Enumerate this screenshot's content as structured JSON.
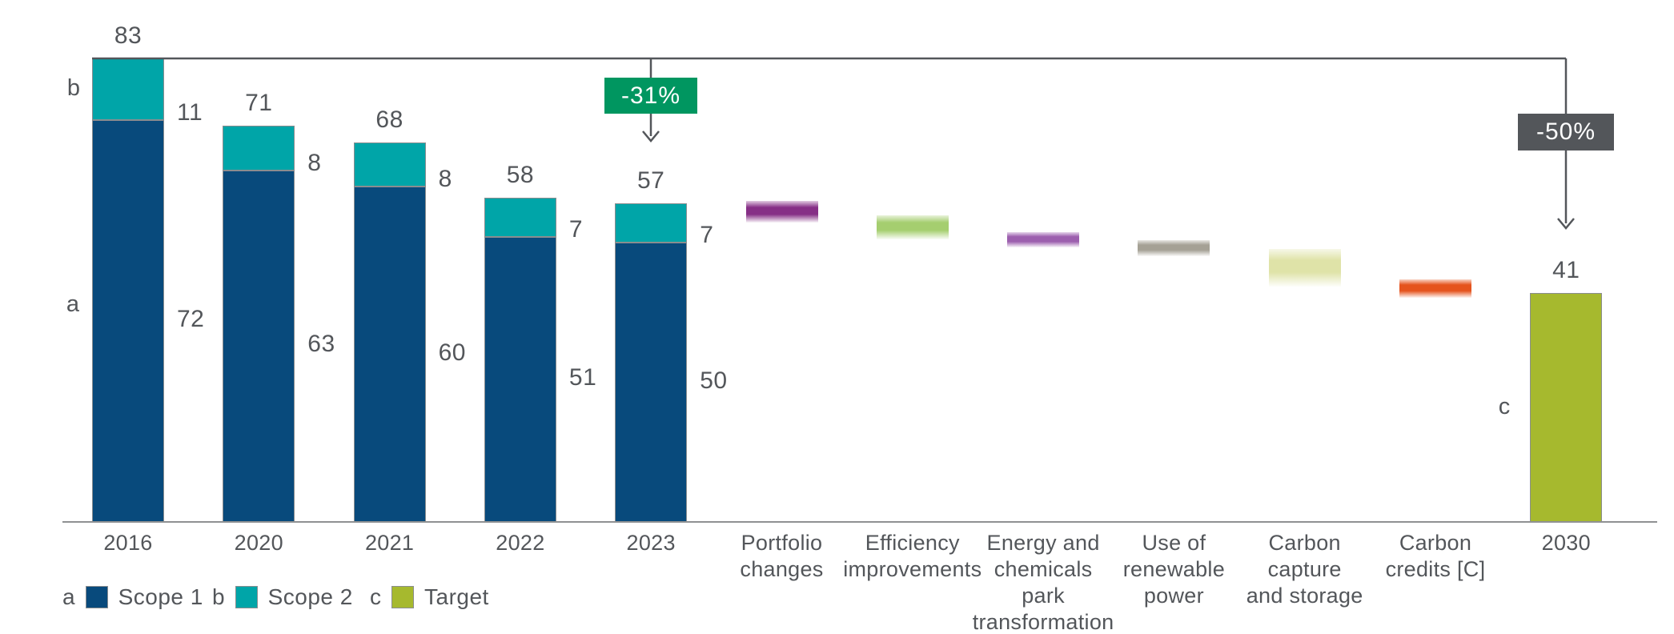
{
  "chart_data": {
    "type": "waterfall",
    "title": "",
    "unit": "",
    "grid": "off",
    "reference_line": {
      "value": 83,
      "from_column": "2016",
      "to_column": "2030"
    },
    "stacked_series": {
      "categories": [
        "2016",
        "2020",
        "2021",
        "2022",
        "2023"
      ],
      "series": [
        {
          "name": "Scope 1",
          "values": [
            72,
            63,
            60,
            51,
            50
          ]
        },
        {
          "name": "Scope 2",
          "values": [
            11,
            8,
            8,
            7,
            7
          ]
        }
      ],
      "totals": [
        83,
        71,
        68,
        58,
        57
      ]
    },
    "columns": [
      {
        "type": "stacked",
        "label_lines": [
          "2016"
        ],
        "total": 83,
        "scope1": 72,
        "scope2": 11
      },
      {
        "type": "stacked",
        "label_lines": [
          "2020"
        ],
        "total": 71,
        "scope1": 63,
        "scope2": 8
      },
      {
        "type": "stacked",
        "label_lines": [
          "2021"
        ],
        "total": 68,
        "scope1": 60,
        "scope2": 8
      },
      {
        "type": "stacked",
        "label_lines": [
          "2022"
        ],
        "total": 58,
        "scope1": 51,
        "scope2": 7
      },
      {
        "type": "stacked",
        "label_lines": [
          "2023"
        ],
        "total": 57,
        "scope1": 50,
        "scope2": 7
      },
      {
        "type": "step",
        "label_lines": [
          "Portfolio",
          "changes"
        ],
        "from": 57,
        "to": 54.5,
        "color": "#862F86"
      },
      {
        "type": "step",
        "label_lines": [
          "Efficiency",
          "improvements"
        ],
        "from": 54.5,
        "to": 51.5,
        "color": "#A5CE6F"
      },
      {
        "type": "step",
        "label_lines": [
          "Energy and",
          "chemicals",
          "park",
          "transformation"
        ],
        "from": 51.5,
        "to": 50,
        "color": "#9C5FAE"
      },
      {
        "type": "step",
        "label_lines": [
          "Use of",
          "renewable",
          "power"
        ],
        "from": 50,
        "to": 48.5,
        "color": "#A5A195"
      },
      {
        "type": "step",
        "label_lines": [
          "Carbon",
          "capture",
          "and storage"
        ],
        "from": 48.5,
        "to": 43,
        "color": "#DFE3A8"
      },
      {
        "type": "step",
        "label_lines": [
          "Carbon",
          "credits [C]"
        ],
        "from": 43,
        "to": 41,
        "color": "#E5531D"
      },
      {
        "type": "target",
        "label_lines": [
          "2030"
        ],
        "value": 41,
        "color": "#A6B92E"
      }
    ],
    "annotations": [
      {
        "text": "-31%",
        "bg": "#009660",
        "text_color": "#FFFFFF",
        "column": "2023"
      },
      {
        "text": "-50%",
        "bg": "#53565A",
        "text_color": "#FFFFFF",
        "column": "2030"
      }
    ],
    "letter_markers": [
      {
        "letter": "a",
        "column": "2016"
      },
      {
        "letter": "b",
        "column": "2016"
      },
      {
        "letter": "c",
        "column": "2030"
      }
    ],
    "legend": [
      {
        "letter": "a",
        "label": "Scope 1",
        "color": "#084A7C"
      },
      {
        "letter": "b",
        "label": "Scope 2",
        "color": "#00A5A8"
      },
      {
        "letter": "c",
        "label": "Target",
        "color": "#A6B92E"
      }
    ],
    "colors": {
      "scope1": "#084A7C",
      "scope2": "#00A5A8",
      "target": "#A6B92E",
      "text": "#53565A",
      "axis": "#8F9193",
      "reference_line": "#53565A"
    }
  }
}
